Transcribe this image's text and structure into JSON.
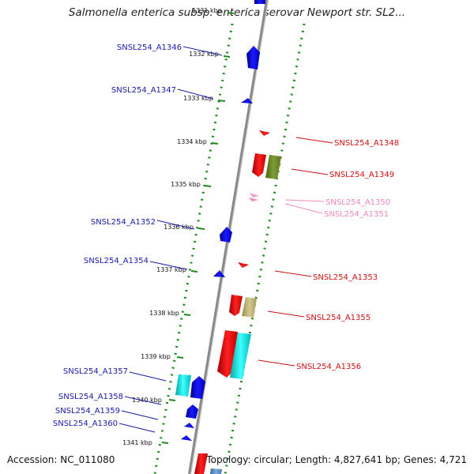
{
  "title": "Salmonella enterica subsp. enterica serovar Newport str. SL2...",
  "footer": {
    "accession": "Accession: NC_011080",
    "topology": "Topology: circular; Length: 4,827,641 bp; Genes: 4,721"
  },
  "colors": {
    "forward_label": "#1a1aa8",
    "reverse_label": "#cc1111",
    "rna_label": "#ee88bb",
    "backbone": "#888888",
    "dots": "#1e8a1e"
  },
  "ticks": [
    "1331 kbp",
    "1332 kbp",
    "1333 kbp",
    "1334 kbp",
    "1335 kbp",
    "1336 kbp",
    "1337 kbp",
    "1338 kbp",
    "1339 kbp",
    "1340 kbp",
    "1341 kbp"
  ],
  "genes_left": [
    {
      "label": "SNSL254_A1346"
    },
    {
      "label": "SNSL254_A1347"
    },
    {
      "label": "SNSL254_A1352"
    },
    {
      "label": "SNSL254_A1354"
    },
    {
      "label": "SNSL254_A1357"
    },
    {
      "label": "SNSL254_A1358"
    },
    {
      "label": "SNSL254_A1359"
    },
    {
      "label": "SNSL254_A1360"
    }
  ],
  "genes_right": [
    {
      "label": "SNSL254_A1348"
    },
    {
      "label": "SNSL254_A1349"
    },
    {
      "label": "SNSL254_A1350"
    },
    {
      "label": "SNSL254_A1351"
    },
    {
      "label": "SNSL254_A1353"
    },
    {
      "label": "SNSL254_A1355"
    },
    {
      "label": "SNSL254_A1356"
    }
  ]
}
